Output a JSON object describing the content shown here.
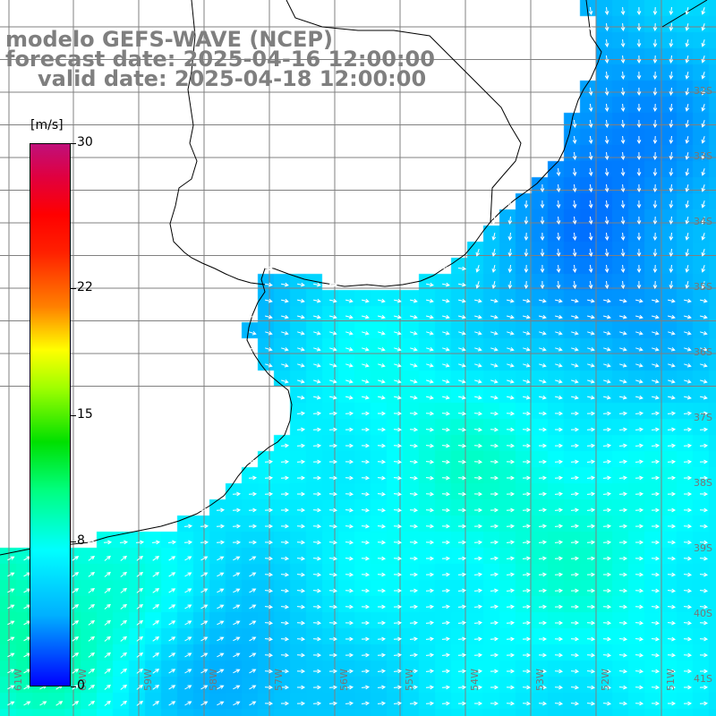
{
  "title": {
    "line1": "modelo GEFS-WAVE (NCEP)",
    "line2": "forecast date: 2025-04-16 12:00:00",
    "line3": "valid date: 2025-04-18 12:00:00"
  },
  "colorbar": {
    "unit": "[m/s]",
    "ticks": [
      "30",
      "22",
      "15",
      "8",
      "0"
    ],
    "tick_values": [
      30,
      22,
      15,
      8,
      0
    ],
    "range": [
      0,
      30
    ]
  },
  "lat_labels": [
    "32S",
    "33S",
    "34S",
    "35S",
    "36S",
    "37S",
    "38S",
    "39S",
    "40S",
    "41S"
  ],
  "lon_labels": [
    "61W",
    "60W",
    "59W",
    "58W",
    "57W",
    "56W",
    "55W",
    "54W",
    "53W",
    "52W",
    "51W"
  ],
  "colors": {
    "land": "#ffffff",
    "coastline": "#000000",
    "grid": "#808080",
    "arrows": "#ffffff",
    "title_text": "#7f7f7f"
  },
  "map_extent": {
    "lon": [
      -62,
      -51
    ],
    "lat": [
      -41.3,
      -30.5
    ]
  }
}
